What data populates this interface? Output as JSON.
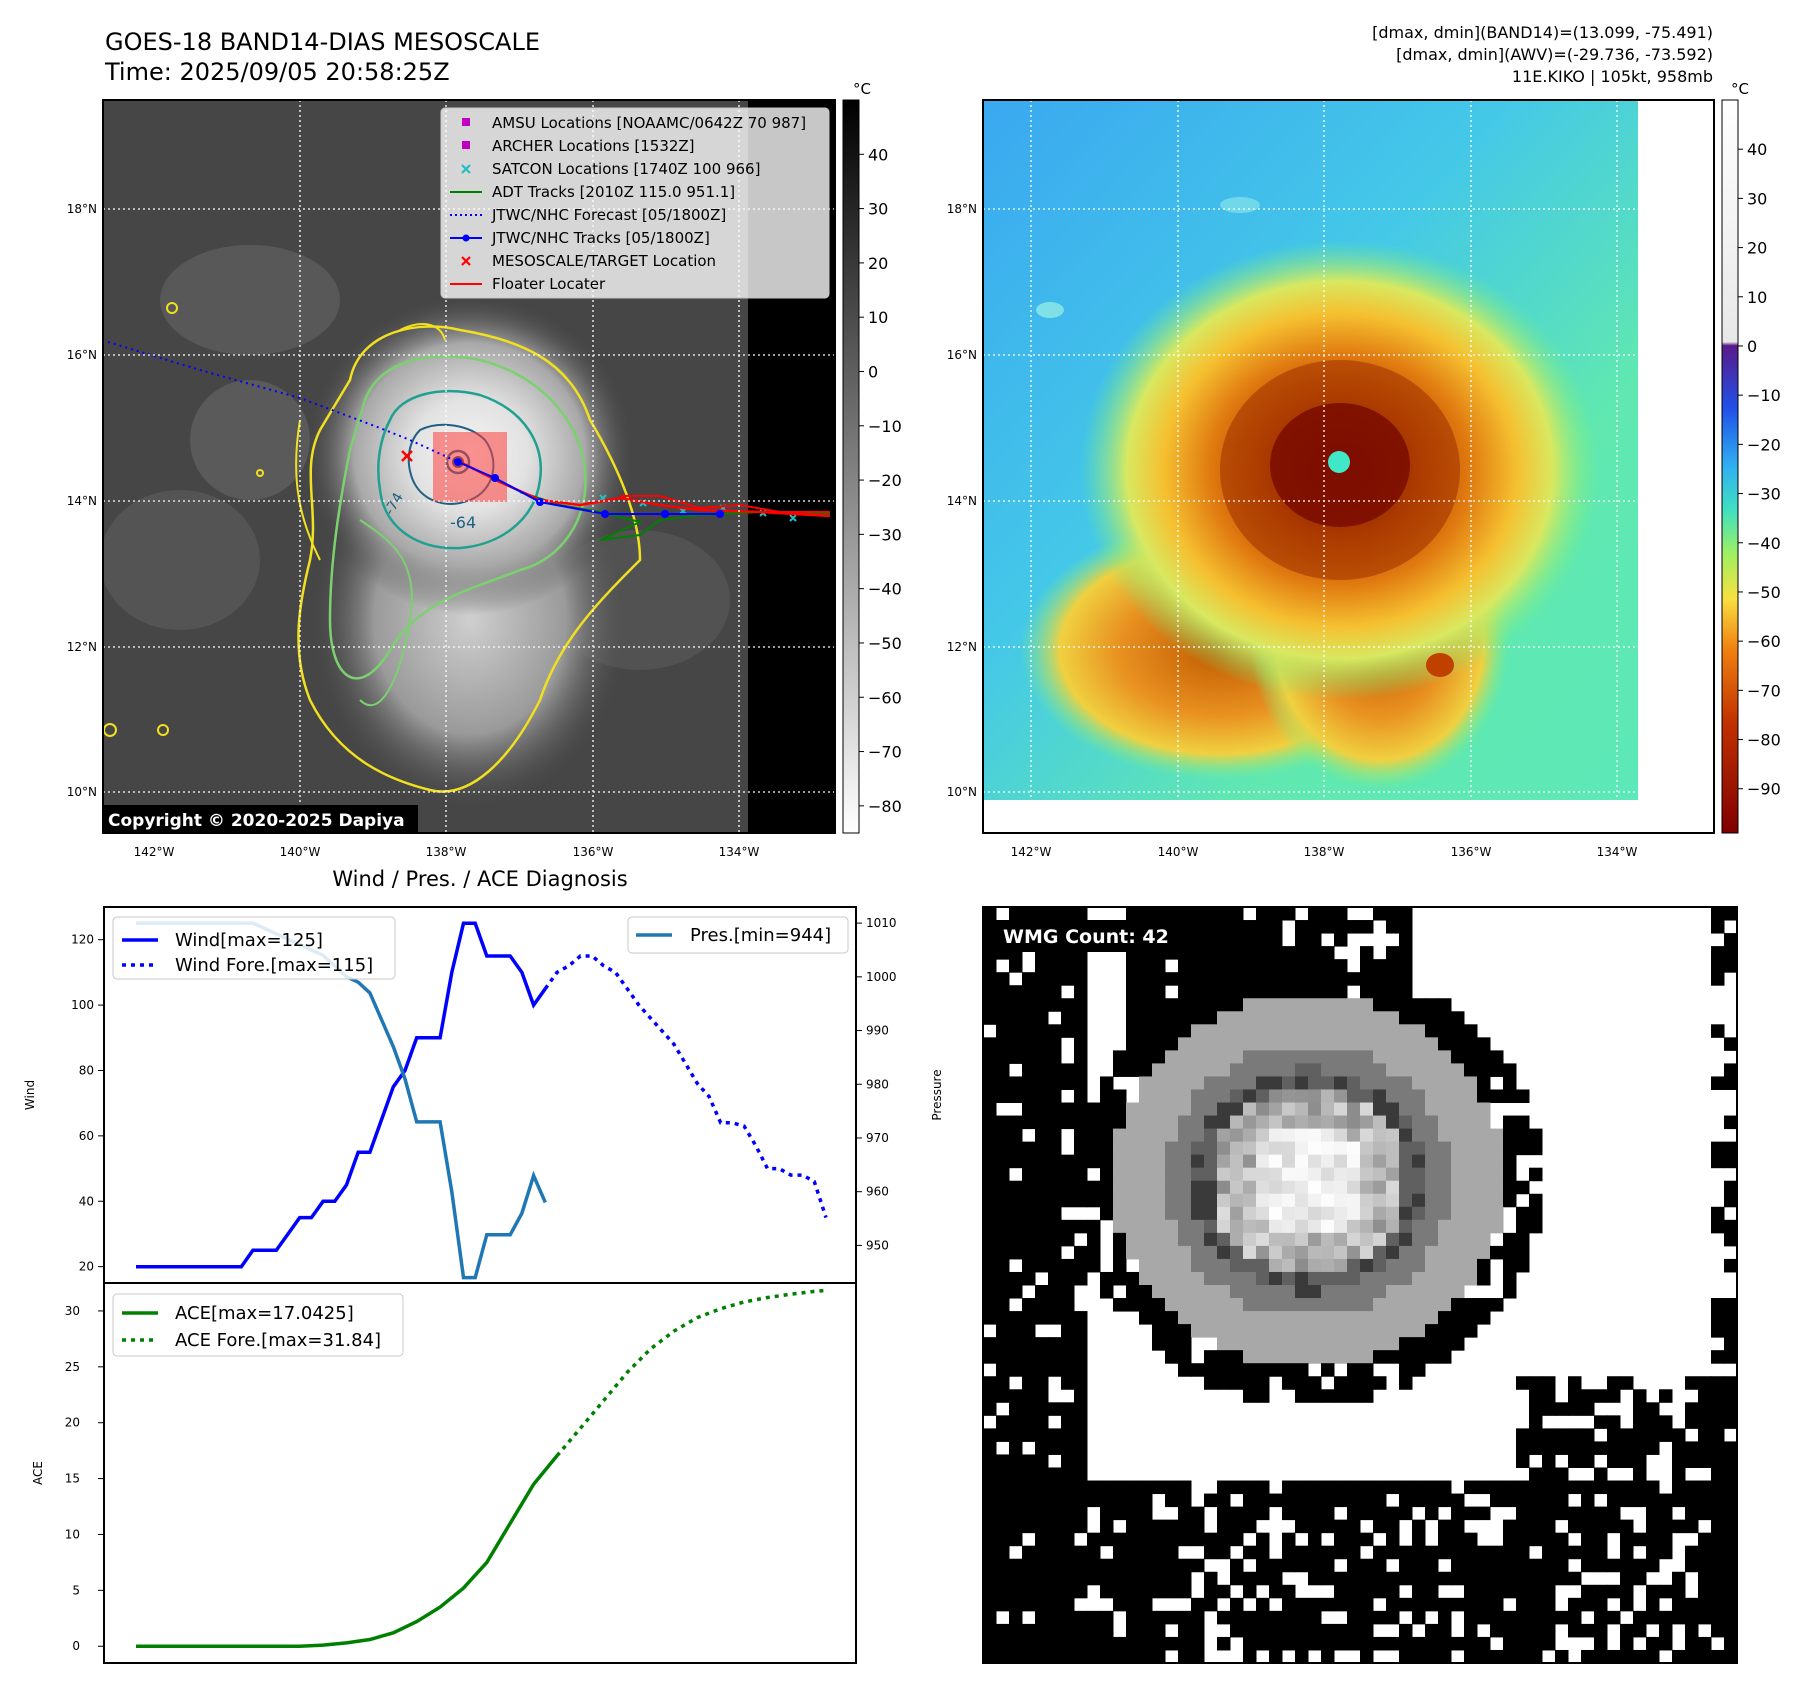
{
  "header": {
    "title_line1": "GOES-18 BAND14-DIAS MESOSCALE",
    "title_line2": "Time: 2025/09/05 20:58:25Z",
    "stats_line1": "[dmax, dmin](BAND14)=(13.099, -75.491)",
    "stats_line2": "[dmax, dmin](AWV)=(-29.736, -73.592)",
    "stats_line3": "11E.KIKO | 105kt, 958mb"
  },
  "copyright": "Copyright © 2020-2025 Dapiya",
  "map_axes": {
    "x_ticks": [
      "142°W",
      "140°W",
      "138°W",
      "136°W",
      "134°W"
    ],
    "y_ticks": [
      "18°N",
      "16°N",
      "14°N",
      "12°N",
      "10°N"
    ]
  },
  "legend_map": [
    {
      "label": "AMSU Locations [NOAAMC/0642Z 70 987]",
      "color": "#c000c0",
      "kind": "square"
    },
    {
      "label": "ARCHER Locations [1532Z]",
      "color": "#c000c0",
      "kind": "square"
    },
    {
      "label": "SATCON Locations [1740Z 100 966]",
      "color": "#20c0c0",
      "kind": "x"
    },
    {
      "label": "ADT Tracks [2010Z 115.0 951.1]",
      "color": "#008000",
      "kind": "line"
    },
    {
      "label": "JTWC/NHC Forecast [05/1800Z]",
      "color": "#0000ff",
      "kind": "dotted"
    },
    {
      "label": "JTWC/NHC Tracks [05/1800Z]",
      "color": "#0000ff",
      "kind": "linedot"
    },
    {
      "label": "MESOSCALE/TARGET Location",
      "color": "#ff0000",
      "kind": "x"
    },
    {
      "label": "Floater Locater",
      "color": "#ff0000",
      "kind": "line"
    }
  ],
  "contour_labels": [
    "-64",
    "-74"
  ],
  "colorbar_left": {
    "unit": "°C",
    "ticks": [
      "40",
      "30",
      "20",
      "10",
      "0",
      "−10",
      "−20",
      "−30",
      "−40",
      "−50",
      "−60",
      "−70",
      "−80"
    ]
  },
  "colorbar_right": {
    "unit": "°C",
    "ticks": [
      "40",
      "30",
      "20",
      "10",
      "0",
      "−10",
      "−20",
      "−30",
      "−40",
      "−50",
      "−60",
      "−70",
      "−80",
      "−90"
    ]
  },
  "wmg": {
    "label": "WMG Count: 42"
  },
  "chart_data": [
    {
      "type": "line",
      "title": "Wind / Pres. / ACE Diagnosis",
      "ylabel": "Wind",
      "ylabel_right": "Pressure",
      "ylim": [
        15,
        130
      ],
      "ylim_right": [
        943,
        1013
      ],
      "yticks": [
        20,
        40,
        60,
        80,
        100,
        120
      ],
      "yticks_right": [
        950,
        960,
        970,
        980,
        990,
        1000,
        1010
      ],
      "series": [
        {
          "name": "Wind[max=125]",
          "style": "solid",
          "color": "#0000ff",
          "axis": "left",
          "x": [
            0,
            1,
            2,
            3,
            4,
            5,
            6,
            7,
            8,
            9,
            10,
            11,
            12,
            13,
            14,
            15,
            16,
            17,
            18,
            19,
            20,
            21,
            22,
            23,
            24,
            25,
            26,
            27,
            28,
            29,
            30,
            31,
            32,
            33,
            34,
            35,
            36,
            37
          ],
          "values": [
            20,
            20,
            20,
            20,
            20,
            20,
            20,
            20,
            20,
            20,
            25,
            25,
            25,
            30,
            35,
            35,
            40,
            40,
            45,
            55,
            55,
            65,
            75,
            80,
            90,
            90,
            90,
            110,
            125,
            125,
            115,
            115,
            115,
            110,
            100,
            105,
            null,
            null
          ]
        },
        {
          "name": "Wind Fore.[max=115]",
          "style": "dotted",
          "color": "#0000ff",
          "axis": "left",
          "x": [
            35,
            36,
            37,
            38,
            39,
            40,
            41,
            42,
            43,
            44,
            45,
            46,
            47,
            48,
            49,
            50,
            51,
            52,
            53,
            54,
            55,
            56,
            57,
            58,
            59
          ],
          "values": [
            105,
            110,
            112,
            115,
            115,
            112,
            110,
            105,
            100,
            96,
            92,
            88,
            82,
            76,
            72,
            64,
            64,
            63,
            57,
            50,
            50,
            48,
            48,
            46,
            35
          ]
        },
        {
          "name": "Pres.[min=944]",
          "style": "solid",
          "color": "#1f77b4",
          "axis": "right",
          "x": [
            0,
            1,
            2,
            3,
            4,
            5,
            6,
            7,
            8,
            9,
            10,
            11,
            12,
            13,
            14,
            15,
            16,
            17,
            18,
            19,
            20,
            21,
            22,
            23,
            24,
            25,
            26,
            27,
            28,
            29,
            30,
            31,
            32,
            33,
            34,
            35
          ],
          "values": [
            1010,
            1010,
            1010,
            1010,
            1010,
            1010,
            1010,
            1010,
            1010,
            1010,
            1010,
            1009,
            1008,
            1007,
            1006,
            1005,
            1004,
            1002,
            1000,
            999,
            997,
            992,
            987,
            981,
            973,
            973,
            973,
            960,
            944,
            944,
            952,
            952,
            952,
            956,
            963,
            958
          ]
        }
      ]
    },
    {
      "type": "line",
      "ylabel": "ACE",
      "ylim": [
        -1.5,
        32.5
      ],
      "yticks": [
        0,
        5,
        10,
        15,
        20,
        25,
        30
      ],
      "series": [
        {
          "name": "ACE[max=17.0425]",
          "style": "solid",
          "color": "#008000",
          "x": [
            0,
            2,
            4,
            6,
            8,
            10,
            12,
            14,
            16,
            18,
            20,
            22,
            24,
            26,
            28,
            30,
            32,
            34,
            36
          ],
          "values": [
            0,
            0,
            0,
            0,
            0,
            0,
            0,
            0,
            0.1,
            0.3,
            0.6,
            1.2,
            2.2,
            3.5,
            5.2,
            7.5,
            11.0,
            14.5,
            17.0425
          ]
        },
        {
          "name": "ACE Fore.[max=31.84]",
          "style": "dotted",
          "color": "#008000",
          "x": [
            36,
            38,
            40,
            42,
            44,
            46,
            48,
            50,
            52,
            54,
            56,
            58,
            59
          ],
          "values": [
            17.0425,
            19.5,
            22.0,
            24.5,
            26.6,
            28.2,
            29.4,
            30.2,
            30.8,
            31.2,
            31.5,
            31.75,
            31.84
          ]
        }
      ]
    }
  ]
}
